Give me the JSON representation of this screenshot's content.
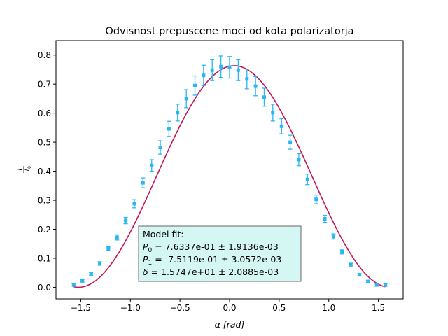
{
  "chart_data": {
    "type": "scatter",
    "title": "Odvisnost prepuscene moci od kota polarizatorja",
    "xlabel": "α [rad]",
    "ylabel": {
      "num": "I",
      "den": "I",
      "sub": "0"
    },
    "xlim": [
      -1.75,
      1.75
    ],
    "ylim": [
      -0.04,
      0.85
    ],
    "xticks": [
      -1.5,
      -1.0,
      -0.5,
      0.0,
      0.5,
      1.0,
      1.5
    ],
    "xtick_labels": [
      "−1.5",
      "−1.0",
      "−0.5",
      "0.0",
      "0.5",
      "1.0",
      "1.5"
    ],
    "yticks": [
      0.0,
      0.1,
      0.2,
      0.3,
      0.4,
      0.5,
      0.6,
      0.7,
      0.8
    ],
    "ytick_labels": [
      "0.0",
      "0.1",
      "0.2",
      "0.3",
      "0.4",
      "0.5",
      "0.6",
      "0.7",
      "0.8"
    ],
    "grid": false,
    "series": [
      {
        "kind": "errorbar",
        "color": "#29b6f6",
        "x": [
          -1.571,
          -1.484,
          -1.396,
          -1.309,
          -1.222,
          -1.134,
          -1.047,
          -0.96,
          -0.873,
          -0.785,
          -0.698,
          -0.611,
          -0.524,
          -0.436,
          -0.349,
          -0.262,
          -0.175,
          -0.087,
          0.0,
          0.087,
          0.175,
          0.262,
          0.349,
          0.436,
          0.524,
          0.611,
          0.698,
          0.785,
          0.873,
          0.96,
          1.047,
          1.134,
          1.222,
          1.309,
          1.396,
          1.484,
          1.571
        ],
        "y": [
          0.008,
          0.022,
          0.046,
          0.082,
          0.133,
          0.172,
          0.23,
          0.288,
          0.36,
          0.42,
          0.482,
          0.546,
          0.602,
          0.65,
          0.695,
          0.73,
          0.748,
          0.76,
          0.758,
          0.748,
          0.718,
          0.693,
          0.655,
          0.602,
          0.555,
          0.5,
          0.44,
          0.372,
          0.303,
          0.236,
          0.175,
          0.122,
          0.078,
          0.043,
          0.02,
          0.008,
          0.008
        ],
        "yerr": [
          0.004,
          0.004,
          0.005,
          0.006,
          0.007,
          0.009,
          0.011,
          0.014,
          0.017,
          0.02,
          0.023,
          0.026,
          0.029,
          0.031,
          0.033,
          0.035,
          0.036,
          0.037,
          0.037,
          0.036,
          0.034,
          0.033,
          0.031,
          0.029,
          0.026,
          0.024,
          0.021,
          0.018,
          0.015,
          0.012,
          0.009,
          0.007,
          0.005,
          0.004,
          0.004,
          0.004,
          0.004
        ]
      },
      {
        "kind": "fit",
        "color": "#c2185b",
        "model": "P0*cos^2(x + P1/δ)",
        "params": {
          "P0": 0.76337,
          "P1": -0.75119,
          "delta": 15.747
        },
        "x_range": [
          -1.571,
          1.571
        ]
      }
    ],
    "annotation": {
      "lines": [
        {
          "sym": "P",
          "sub": "0",
          "text": " = 7.6337e-01 ± 1.9136e-03"
        },
        {
          "sym": "P",
          "sub": "1",
          "text": " = -7.5119e-01 ± 3.0572e-03"
        },
        {
          "sym": "δ",
          "sub": "",
          "text": " = 1.5747e+01 ± 2.0885e-03"
        }
      ],
      "header": "Model fit:",
      "background": "#d4f7f4",
      "border": "#666666"
    }
  }
}
